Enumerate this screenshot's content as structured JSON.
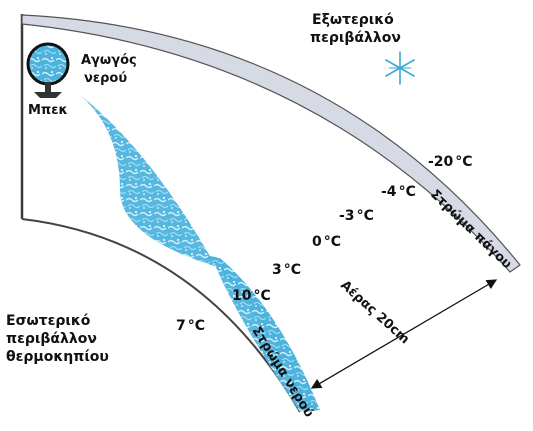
{
  "labels": {
    "outside_line1": "Εξωτερικό",
    "outside_line2": "περιβάλλον",
    "inside_line1": "Εσωτερικό",
    "inside_line2": "περιβάλλον",
    "inside_line3": "θερμοκηπίου",
    "pipe_line1": "Αγωγός",
    "pipe_line2": "νερού",
    "tap": "Μπεκ",
    "ice_layer": "Στρώμα πάγου",
    "water_layer": "Στρώμα νερού",
    "air_gap": "Αέρας 20cm"
  },
  "temperatures": [
    {
      "value": "-20",
      "unit": "°C"
    },
    {
      "value": "-4",
      "unit": "°C"
    },
    {
      "value": "-3",
      "unit": "°C"
    },
    {
      "value": "0",
      "unit": "°C"
    },
    {
      "value": "3",
      "unit": "°C"
    },
    {
      "value": "10",
      "unit": "°C"
    },
    {
      "value": "7",
      "unit": "°C"
    }
  ],
  "colors": {
    "water": "#5fbfe3",
    "water_light": "#c6ebf8",
    "ice": "#d6dae4",
    "frame": "#3a3a3a",
    "snowflake": "#39a9d6"
  },
  "icons": {
    "snowflake": "snowflake-icon",
    "pipe": "pipe-icon",
    "tap": "nozzle-icon"
  }
}
